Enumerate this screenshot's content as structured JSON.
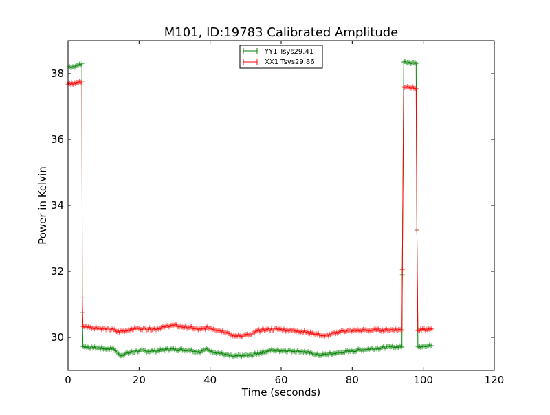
{
  "chart_data": {
    "type": "line",
    "title": "M101, ID:19783 Calibrated Amplitude",
    "xlabel": "Time (seconds)",
    "ylabel": "Power in Kelvin",
    "xlim": [
      0,
      120
    ],
    "ylim": [
      29,
      39
    ],
    "xticks": [
      0,
      20,
      40,
      60,
      80,
      100,
      120
    ],
    "yticks": [
      30,
      32,
      34,
      36,
      38
    ],
    "grid": false,
    "legend_placement": "top-center",
    "series": [
      {
        "name": "YY1 Tsys29.41",
        "color": "#008000",
        "marker": "+",
        "x": [
          0,
          2,
          3.9,
          4.0,
          4.2,
          8,
          12.9,
          14.5,
          19.4,
          24.5,
          27.7,
          34,
          37.4,
          38.7,
          42,
          46.4,
          51.6,
          56.8,
          61,
          65.8,
          71,
          77.4,
          83.9,
          91,
          94,
          94.1,
          94.5,
          96,
          98,
          98.2,
          98.5,
          100,
          102.5
        ],
        "y": [
          38.2,
          38.22,
          38.3,
          30.75,
          29.72,
          29.68,
          29.65,
          29.46,
          29.59,
          29.58,
          29.64,
          29.62,
          29.56,
          29.64,
          29.54,
          29.42,
          29.46,
          29.61,
          29.6,
          29.58,
          29.46,
          29.55,
          29.64,
          29.71,
          29.72,
          31.9,
          38.35,
          38.35,
          38.3,
          33.25,
          29.72,
          29.75,
          29.75
        ]
      },
      {
        "name": "XX1 Tsys29.86",
        "color": "#ff0000",
        "marker": "+",
        "x": [
          0,
          2,
          3.9,
          4.0,
          4.2,
          12.9,
          13.9,
          19.4,
          24.5,
          29,
          34,
          37.4,
          39.4,
          45,
          46.4,
          51.6,
          53.5,
          58,
          64.5,
          71,
          72.3,
          77.4,
          83.9,
          91,
          94,
          94.1,
          94.5,
          96,
          98,
          98.2,
          98.5,
          100,
          102.5
        ],
        "y": [
          37.68,
          37.7,
          37.75,
          31.2,
          30.33,
          30.23,
          30.17,
          30.27,
          30.25,
          30.37,
          30.3,
          30.23,
          30.3,
          30.15,
          30.04,
          30.08,
          30.2,
          30.25,
          30.2,
          30.08,
          30.04,
          30.2,
          30.21,
          30.23,
          30.23,
          32.05,
          37.6,
          37.6,
          37.55,
          33.25,
          30.2,
          30.23,
          30.23
        ]
      }
    ]
  }
}
